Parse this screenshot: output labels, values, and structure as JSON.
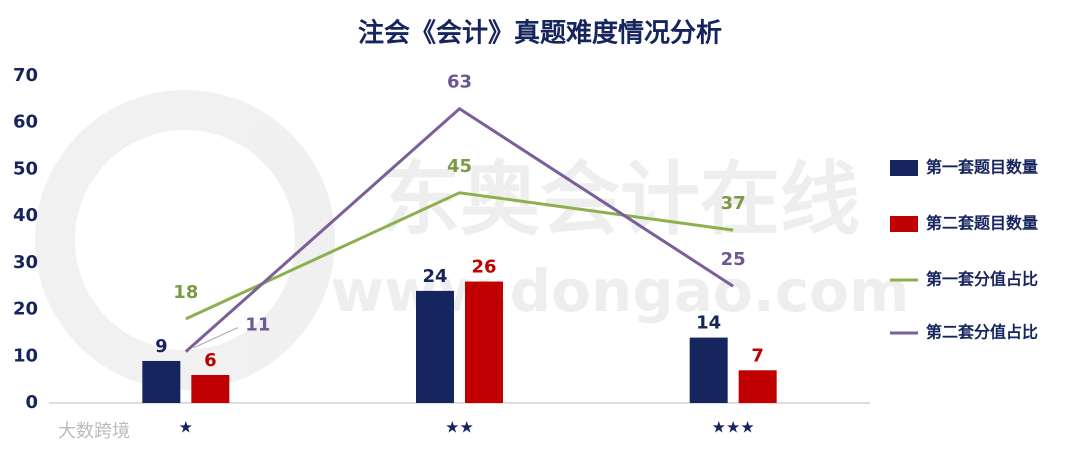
{
  "chart_data": {
    "type": "bar-line",
    "title": "注会《会计》真题难度情况分析",
    "watermarks": [
      "东奥会计在线",
      "www.dongao.com",
      "大数跨境"
    ],
    "categories": [
      "★",
      "★★",
      "★★★"
    ],
    "series": [
      {
        "name": "第一套题目数量",
        "type": "bar",
        "color": "#17255e",
        "values": [
          9,
          24,
          14
        ]
      },
      {
        "name": "第二套题目数量",
        "type": "bar",
        "color": "#c00000",
        "values": [
          6,
          26,
          7
        ]
      },
      {
        "name": "第一套分值占比",
        "type": "line",
        "color": "#8db04f",
        "label_color": "#7a9a45",
        "values": [
          18,
          45,
          37
        ]
      },
      {
        "name": "第二套分值占比",
        "type": "line",
        "color": "#7c5e9a",
        "label_color": "#6e5890",
        "values": [
          11,
          63,
          25
        ]
      }
    ],
    "ylim": [
      0,
      70
    ],
    "yticks": [
      0,
      10,
      20,
      30,
      40,
      50,
      60,
      70
    ],
    "grid": false,
    "legend": "right"
  }
}
